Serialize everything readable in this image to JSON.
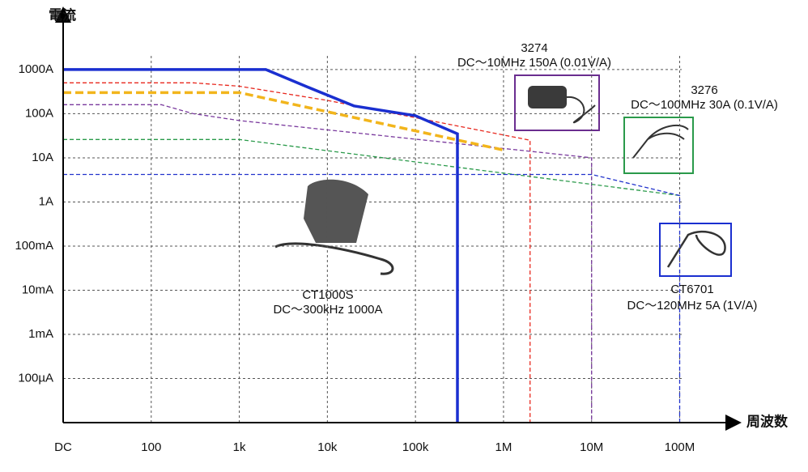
{
  "chart_data": {
    "type": "line",
    "ylabel": "電流",
    "xlabel": "周波数",
    "xscale": "log",
    "yscale": "log",
    "grid": true,
    "xlim": [
      10,
      400000000
    ],
    "ylim": [
      1e-05,
      20000
    ],
    "xticks": [
      {
        "value": 10,
        "label": "DC"
      },
      100,
      {
        "value": 1000,
        "label": "1k"
      },
      {
        "value": 10000,
        "label": "10k"
      },
      {
        "value": 100000,
        "label": "100k"
      },
      {
        "value": 1000000,
        "label": "1M"
      },
      {
        "value": 10000000,
        "label": "10M"
      },
      {
        "value": 100000000,
        "label": "100M"
      }
    ],
    "yticks": [
      {
        "value": 1000,
        "label": "1000A"
      },
      {
        "value": 100,
        "label": "100A"
      },
      {
        "value": 10,
        "label": "10A"
      },
      {
        "value": 1,
        "label": "1A"
      },
      {
        "value": 0.1,
        "label": "100mA"
      },
      {
        "value": 0.01,
        "label": "10mA"
      },
      {
        "value": 0.001,
        "label": "1mA"
      },
      {
        "value": 0.0001,
        "label": "100µA"
      }
    ],
    "series": [
      {
        "color": "#e8281e",
        "style": "dashed",
        "width": 1.3,
        "x": [
          10,
          300,
          1000,
          10000,
          2000000,
          2000000
        ],
        "values": [
          500,
          500,
          420,
          200,
          25,
          1e-05
        ]
      },
      {
        "color": "#7a3a9e",
        "style": "dashed",
        "width": 1.3,
        "x": [
          10,
          130,
          300,
          1000,
          10000000,
          10000000
        ],
        "values": [
          160,
          160,
          100,
          70,
          10,
          1e-05
        ]
      },
      {
        "color": "#2a9a4a",
        "style": "dashed",
        "width": 1.3,
        "x": [
          10,
          1000,
          100000000
        ],
        "values": [
          26,
          26,
          1.4
        ]
      },
      {
        "color": "#2233cc",
        "style": "dashed",
        "width": 1.3,
        "x": [
          10,
          10000000,
          100000000,
          100000000
        ],
        "values": [
          4.2,
          4.2,
          1.4,
          1e-05
        ]
      },
      {
        "color": "#f2b51c",
        "style": "dashed",
        "width": 3.5,
        "x": [
          10,
          1000,
          1000000
        ],
        "values": [
          300,
          300,
          15
        ]
      },
      {
        "color": "#1a2fd0",
        "style": "solid",
        "width": 3.5,
        "x": [
          10,
          2000,
          6000,
          20000,
          100000,
          300000,
          300000
        ],
        "values": [
          1000,
          1000,
          400,
          150,
          90,
          35,
          1e-05
        ]
      }
    ],
    "annotations": [
      {
        "lines": [
          "3274",
          "DC～10MHz 150A  (0.01V/A)"
        ]
      },
      {
        "lines": [
          "3276",
          "DC～100MHz 30A  (0.1V/A)"
        ]
      },
      {
        "lines": [
          "CT1000S",
          "DC～300kHz 1000A"
        ]
      },
      {
        "lines": [
          "CT6701",
          "DC～120MHz 5A  (1V/A)"
        ]
      }
    ]
  }
}
